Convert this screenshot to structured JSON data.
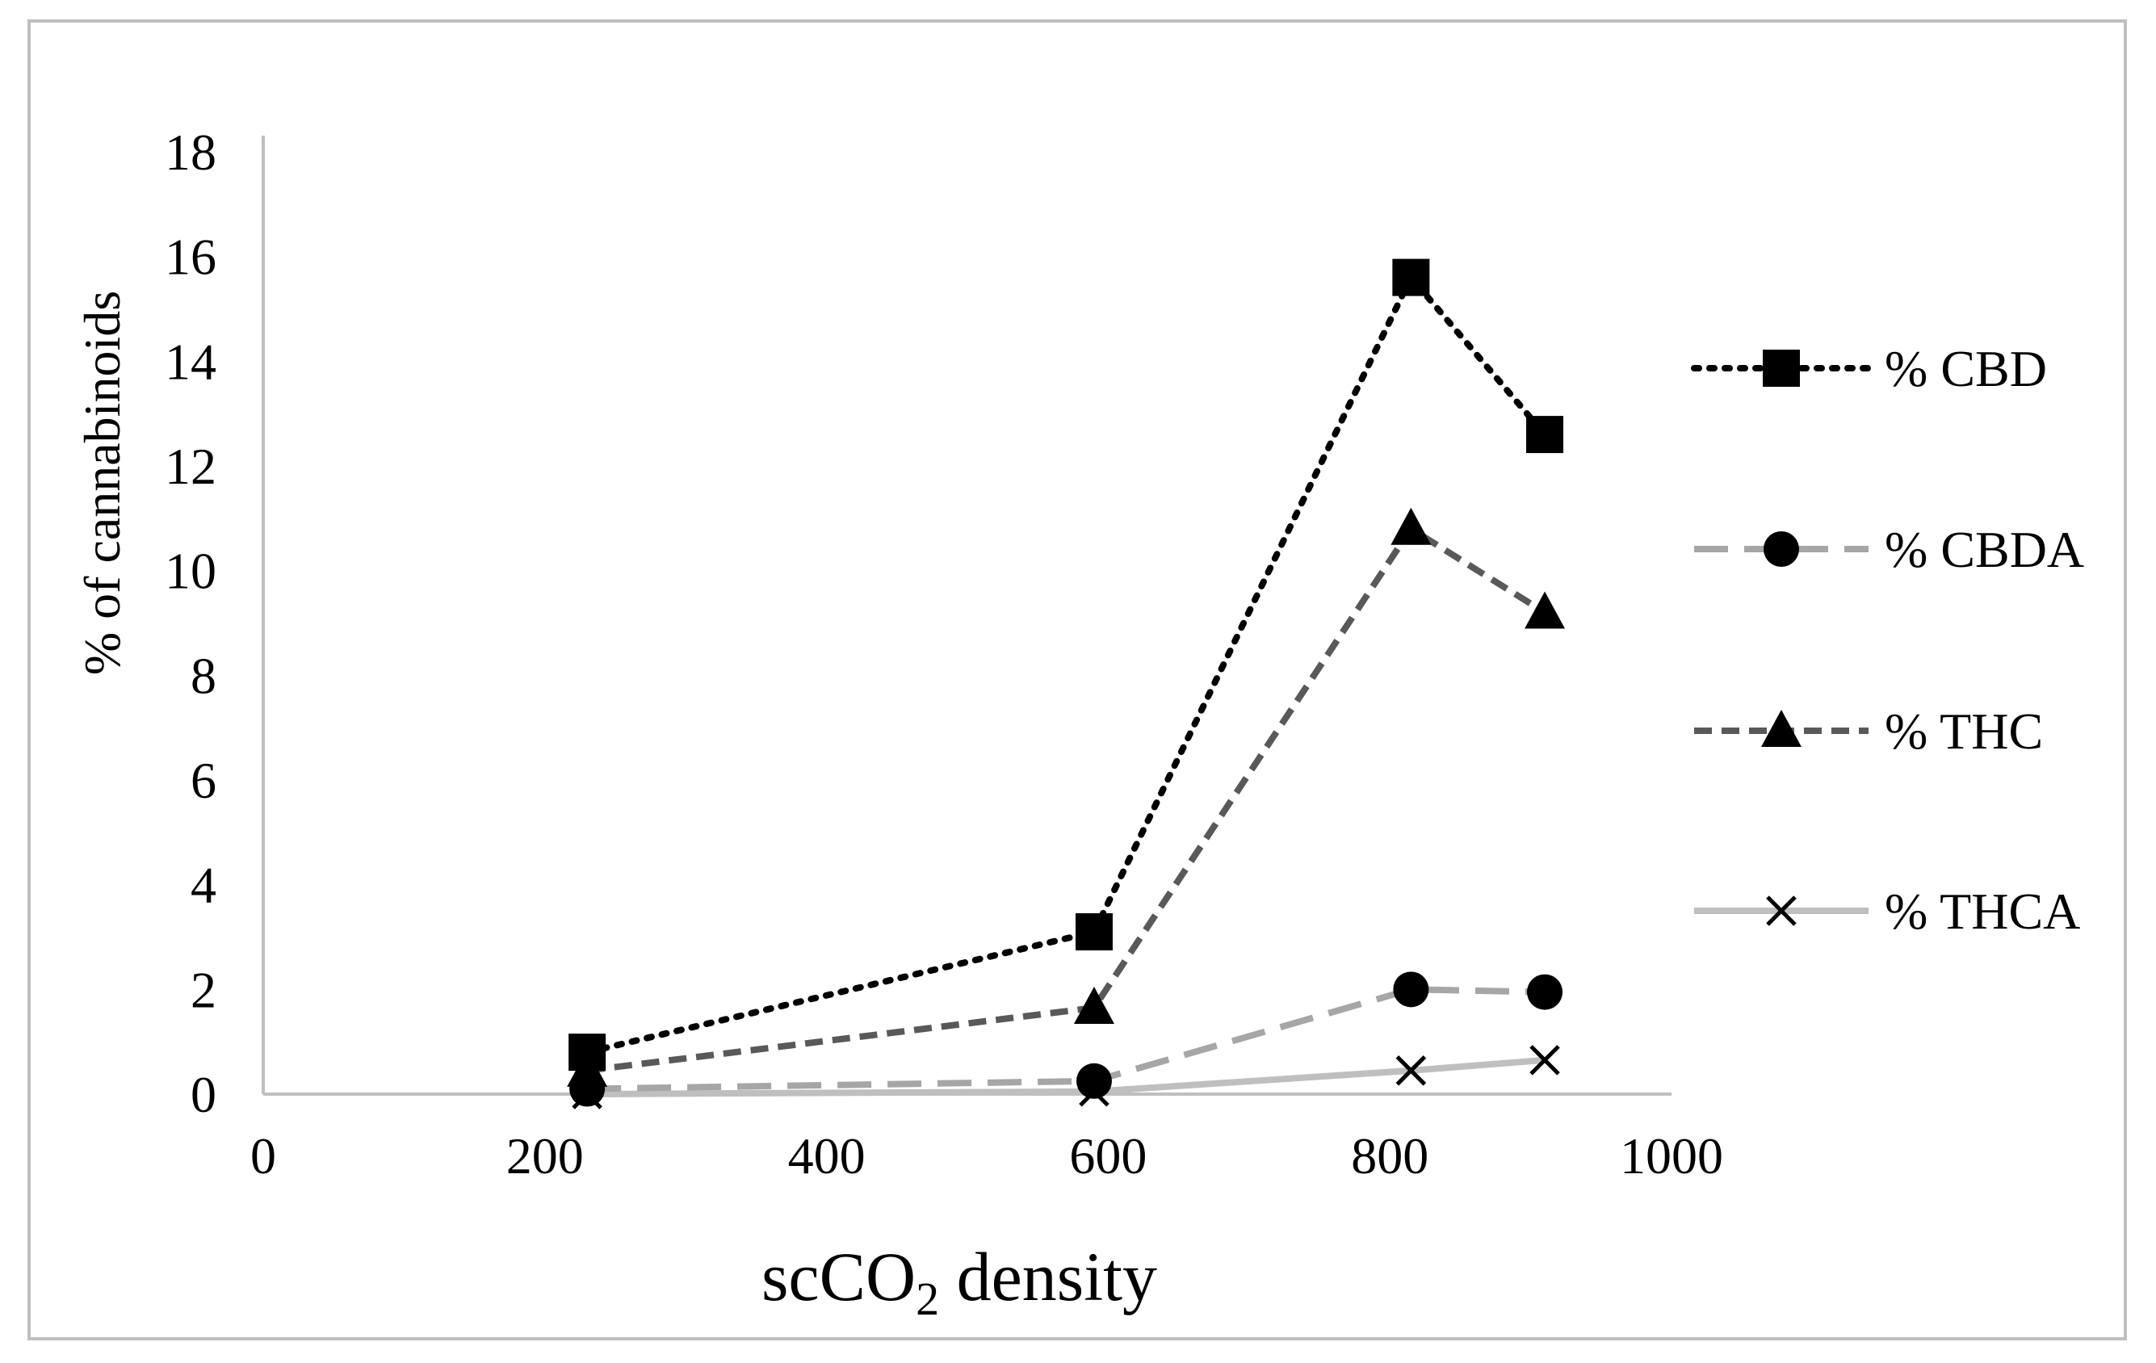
{
  "chart_data": {
    "type": "line",
    "title": "",
    "xlabel_main": "scCO",
    "xlabel_sub": "2",
    "xlabel_rest": " density",
    "ylabel": "% of cannabinoids",
    "xlim": [
      0,
      1000
    ],
    "ylim": [
      0,
      18
    ],
    "xticks": [
      "0",
      "200",
      "400",
      "600",
      "800",
      "1000"
    ],
    "yticks": [
      "0",
      "2",
      "4",
      "6",
      "8",
      "10",
      "12",
      "14",
      "16",
      "18"
    ],
    "grid": false,
    "legend_position": "right",
    "series": [
      {
        "name": "% CBD",
        "marker": "square",
        "dash": "dotted",
        "color": "#000000",
        "x": [
          230,
          590,
          815,
          910
        ],
        "y": [
          0.8,
          3.1,
          15.6,
          12.6
        ]
      },
      {
        "name": "% CBDA",
        "marker": "circle",
        "dash": "long-dash",
        "color": "#a6a6a6",
        "x": [
          230,
          590,
          815,
          910
        ],
        "y": [
          0.1,
          0.25,
          2.0,
          1.95
        ]
      },
      {
        "name": "% THC",
        "marker": "triangle",
        "dash": "short-dash",
        "color": "#595959",
        "x": [
          230,
          590,
          815,
          910
        ],
        "y": [
          0.45,
          1.65,
          10.8,
          9.2
        ]
      },
      {
        "name": "% THCA",
        "marker": "x",
        "dash": "solid",
        "color": "#bfbfbf",
        "x": [
          230,
          590,
          815,
          910
        ],
        "y": [
          0.0,
          0.05,
          0.45,
          0.65
        ]
      }
    ]
  }
}
